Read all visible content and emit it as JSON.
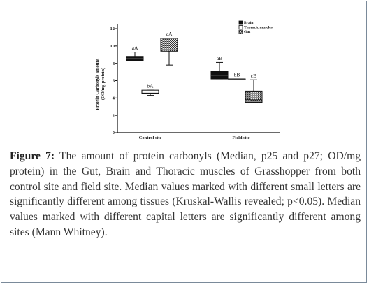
{
  "chart_data": {
    "type": "box",
    "ylabel_line1": "Protein Carbonyls amount",
    "ylabel_line2": "(OD/mg protein)",
    "yticks": [
      0,
      2,
      4,
      6,
      8,
      10,
      12
    ],
    "ylim": [
      0,
      12.5
    ],
    "categories": [
      "Control site",
      "Field site"
    ],
    "series": [
      {
        "name": "Brain",
        "pattern": "solid",
        "boxes": [
          {
            "category": "Control site",
            "q1": 8.3,
            "median": 8.55,
            "q3": 8.8,
            "whisker_low": 8.3,
            "whisker_high": 9.3,
            "label": "aA"
          },
          {
            "category": "Field site",
            "q1": 6.2,
            "median": 6.6,
            "q3": 7.1,
            "whisker_low": 6.2,
            "whisker_high": 8.1,
            "label": "aB"
          }
        ]
      },
      {
        "name": "Thoracic muscles",
        "pattern": "hollow",
        "boxes": [
          {
            "category": "Control site",
            "q1": 4.55,
            "median": 4.7,
            "q3": 4.9,
            "whisker_low": 4.3,
            "whisker_high": 4.9,
            "label": "bA"
          },
          {
            "category": "Field site",
            "q1": 6.2,
            "median": 6.2,
            "q3": 6.2,
            "whisker_low": 6.2,
            "whisker_high": 6.2,
            "label": "bB"
          }
        ]
      },
      {
        "name": "Gut",
        "pattern": "checker",
        "boxes": [
          {
            "category": "Control site",
            "q1": 9.4,
            "median": 10.1,
            "q3": 10.9,
            "whisker_low": 7.8,
            "whisker_high": 10.9,
            "label": "cA"
          },
          {
            "category": "Field site",
            "q1": 3.5,
            "median": 3.8,
            "q3": 4.8,
            "whisker_low": 3.5,
            "whisker_high": 6.1,
            "label": "cB"
          }
        ]
      }
    ]
  },
  "caption": {
    "figure_label": "Figure 7:",
    "text": " The amount of protein carbonyls (Median, p25 and p27; OD/mg protein) in the Gut, Brain and Thoracic muscles of Grasshopper from both control site and field site. Median values marked with different small letters are significantly different among tissues (Kruskal-Wallis revealed; p<0.05). Median values marked with different capital letters are significantly different among sites (Mann Whitney)."
  }
}
